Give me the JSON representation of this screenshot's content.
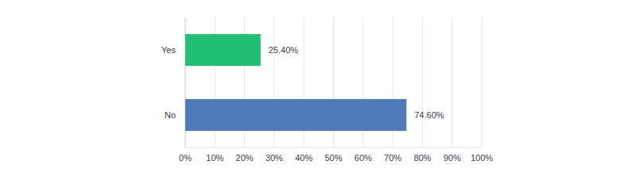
{
  "chart_data": {
    "type": "bar",
    "orientation": "horizontal",
    "categories": [
      "Yes",
      "No"
    ],
    "values": [
      25.4,
      74.6
    ],
    "value_labels": [
      "25.40%",
      "74.60%"
    ],
    "colors": [
      "#21bf73",
      "#4f7cb8"
    ],
    "data_labels": true,
    "grid": true,
    "xlim": [
      0,
      100
    ],
    "xticks": [
      {
        "value": 0,
        "label": "0%"
      },
      {
        "value": 10,
        "label": "10%"
      },
      {
        "value": 20,
        "label": "20%"
      },
      {
        "value": 30,
        "label": "30%"
      },
      {
        "value": 40,
        "label": "40%"
      },
      {
        "value": 50,
        "label": "50%"
      },
      {
        "value": 60,
        "label": "60%"
      },
      {
        "value": 70,
        "label": "70%"
      },
      {
        "value": 80,
        "label": "80%"
      },
      {
        "value": 90,
        "label": "90%"
      },
      {
        "value": 100,
        "label": "100%"
      }
    ]
  }
}
